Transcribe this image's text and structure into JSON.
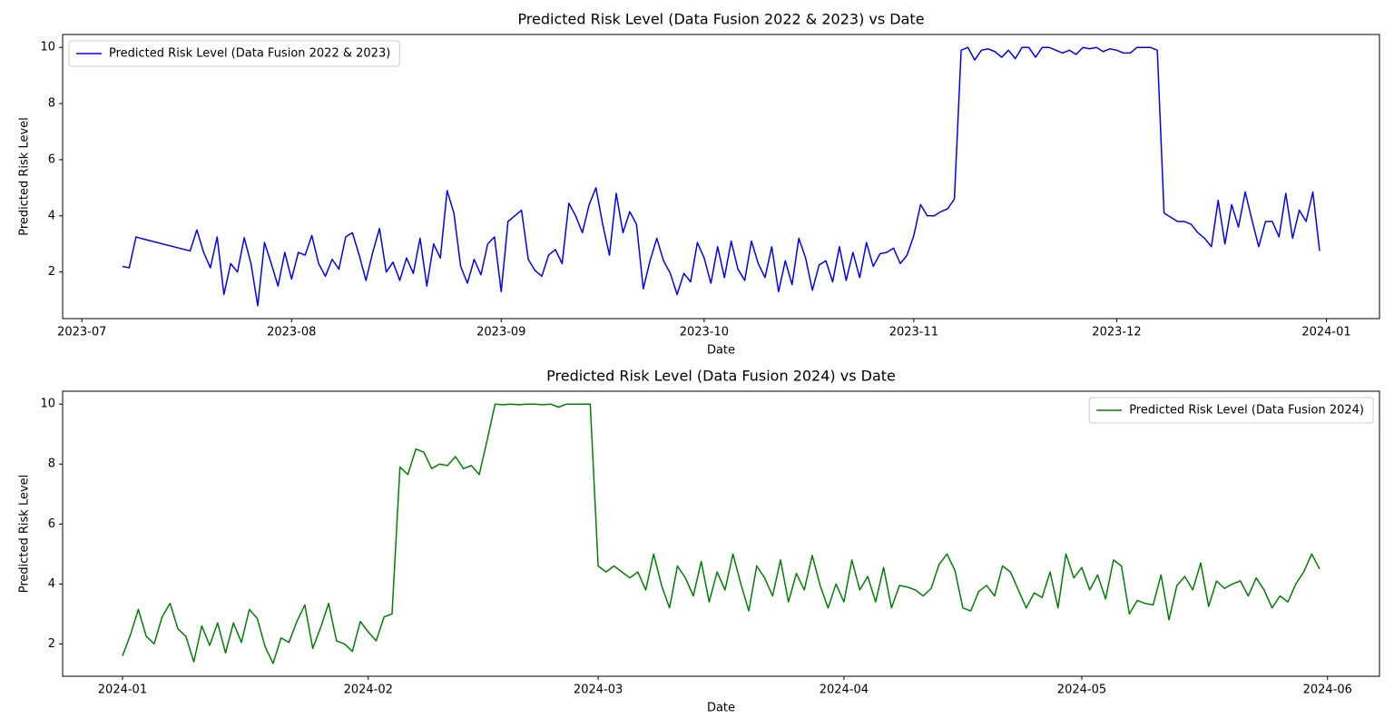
{
  "chart_data": [
    {
      "type": "line",
      "title": "Predicted Risk Level (Data Fusion 2022 & 2023) vs Date",
      "x_label": "Date",
      "y_label": "Predicted Risk Level",
      "legend": "upper left",
      "xlim": [
        19536.15,
        19730.85
      ],
      "ylim": [
        0.34,
        10.46
      ],
      "xticks": [
        {
          "value": 19539,
          "label": "2023-07"
        },
        {
          "value": 19570,
          "label": "2023-08"
        },
        {
          "value": 19601,
          "label": "2023-09"
        },
        {
          "value": 19631,
          "label": "2023-10"
        },
        {
          "value": 19662,
          "label": "2023-11"
        },
        {
          "value": 19692,
          "label": "2023-12"
        },
        {
          "value": 19723,
          "label": "2024-01"
        }
      ],
      "yticks": [
        2,
        4,
        6,
        8,
        10
      ],
      "x": [
        19545,
        19546,
        19547,
        19548,
        19555,
        19556,
        19557,
        19558,
        19559,
        19560,
        19561,
        19562,
        19563,
        19564,
        19565,
        19566,
        19567,
        19568,
        19569,
        19570,
        19571,
        19572,
        19573,
        19574,
        19575,
        19576,
        19577,
        19578,
        19579,
        19580,
        19581,
        19582,
        19583,
        19584,
        19585,
        19586,
        19587,
        19588,
        19589,
        19590,
        19591,
        19592,
        19593,
        19594,
        19595,
        19596,
        19597,
        19598,
        19599,
        19600,
        19601,
        19602,
        19603,
        19604,
        19605,
        19606,
        19607,
        19608,
        19609,
        19610,
        19611,
        19612,
        19613,
        19614,
        19615,
        19616,
        19617,
        19618,
        19619,
        19620,
        19621,
        19622,
        19623,
        19624,
        19625,
        19626,
        19627,
        19628,
        19629,
        19630,
        19631,
        19632,
        19633,
        19634,
        19635,
        19636,
        19637,
        19638,
        19639,
        19640,
        19641,
        19642,
        19643,
        19644,
        19645,
        19646,
        19647,
        19648,
        19649,
        19650,
        19651,
        19652,
        19653,
        19654,
        19655,
        19656,
        19657,
        19658,
        19659,
        19660,
        19661,
        19662,
        19663,
        19664,
        19665,
        19666,
        19667,
        19668,
        19669,
        19670,
        19671,
        19672,
        19673,
        19674,
        19675,
        19676,
        19677,
        19678,
        19679,
        19680,
        19681,
        19682,
        19683,
        19684,
        19685,
        19686,
        19687,
        19688,
        19689,
        19690,
        19691,
        19692,
        19693,
        19694,
        19695,
        19696,
        19697,
        19698,
        19699,
        19700,
        19701,
        19702,
        19703,
        19704,
        19705,
        19706,
        19707,
        19708,
        19709,
        19710,
        19711,
        19712,
        19713,
        19714,
        19715,
        19716,
        19717,
        19718,
        19719,
        19720,
        19721,
        19722
      ],
      "series": [
        {
          "name": "Predicted Risk Level (Data Fusion 2022 & 2023)",
          "color": "#0000ff",
          "values": [
            2.2,
            2.15,
            3.25,
            3.18,
            2.75,
            3.5,
            2.7,
            2.15,
            3.25,
            1.2,
            2.3,
            2.0,
            3.22,
            2.3,
            0.8,
            3.05,
            2.3,
            1.5,
            2.7,
            1.75,
            2.7,
            2.6,
            3.3,
            2.3,
            1.85,
            2.45,
            2.1,
            3.25,
            3.4,
            2.6,
            1.7,
            2.7,
            3.55,
            2.0,
            2.35,
            1.7,
            2.5,
            1.95,
            3.2,
            1.5,
            3.0,
            2.5,
            4.9,
            4.1,
            2.2,
            1.6,
            2.45,
            1.9,
            3.0,
            3.25,
            1.3,
            3.8,
            4.0,
            4.2,
            2.45,
            2.05,
            1.85,
            2.6,
            2.8,
            2.3,
            4.45,
            4.0,
            3.4,
            4.4,
            5.0,
            3.7,
            2.6,
            4.8,
            3.4,
            4.15,
            3.7,
            1.4,
            2.4,
            3.2,
            2.4,
            1.95,
            1.2,
            1.95,
            1.65,
            3.05,
            2.5,
            1.6,
            2.9,
            1.8,
            3.1,
            2.1,
            1.7,
            3.1,
            2.3,
            1.8,
            2.9,
            1.3,
            2.4,
            1.55,
            3.2,
            2.5,
            1.35,
            2.25,
            2.4,
            1.65,
            2.9,
            1.7,
            2.7,
            1.8,
            3.05,
            2.2,
            2.65,
            2.7,
            2.85,
            2.3,
            2.6,
            3.3,
            4.4,
            4.0,
            4.0,
            4.15,
            4.25,
            4.6,
            9.9,
            10.0,
            9.55,
            9.9,
            9.95,
            9.85,
            9.65,
            9.9,
            9.6,
            10.0,
            10.0,
            9.65,
            10.0,
            10.0,
            9.9,
            9.8,
            9.9,
            9.75,
            10.0,
            9.95,
            10.0,
            9.85,
            9.95,
            9.9,
            9.8,
            9.8,
            10.0,
            10.0,
            10.0,
            9.9,
            4.1,
            3.95,
            3.8,
            3.8,
            3.7,
            3.4,
            3.2,
            2.9,
            4.55,
            3.0,
            4.4,
            3.6,
            4.85,
            3.85,
            2.9,
            3.8,
            3.8,
            3.25,
            4.8,
            3.2,
            4.2,
            3.8,
            4.85,
            2.75
          ]
        }
      ]
    },
    {
      "type": "line",
      "title": "Predicted Risk Level (Data Fusion 2024) vs Date",
      "x_label": "Date",
      "y_label": "Predicted Risk Level",
      "legend": "upper right",
      "xlim": [
        19715.45,
        19881.55
      ],
      "ylim": [
        0.92,
        10.43
      ],
      "xticks": [
        {
          "value": 19723,
          "label": "2024-01"
        },
        {
          "value": 19754,
          "label": "2024-02"
        },
        {
          "value": 19783,
          "label": "2024-03"
        },
        {
          "value": 19814,
          "label": "2024-04"
        },
        {
          "value": 19844,
          "label": "2024-05"
        },
        {
          "value": 19875,
          "label": "2024-06"
        }
      ],
      "yticks": [
        2,
        4,
        6,
        8,
        10
      ],
      "x": [
        19723,
        19724,
        19725,
        19726,
        19727,
        19728,
        19729,
        19730,
        19731,
        19732,
        19733,
        19734,
        19735,
        19736,
        19737,
        19738,
        19739,
        19740,
        19741,
        19742,
        19743,
        19744,
        19745,
        19746,
        19747,
        19748,
        19749,
        19750,
        19751,
        19752,
        19753,
        19754,
        19755,
        19756,
        19757,
        19758,
        19759,
        19760,
        19761,
        19762,
        19763,
        19764,
        19765,
        19766,
        19767,
        19768,
        19769,
        19770,
        19771,
        19772,
        19773,
        19774,
        19775,
        19776,
        19777,
        19778,
        19779,
        19780,
        19781,
        19782,
        19783,
        19784,
        19785,
        19786,
        19787,
        19788,
        19789,
        19790,
        19791,
        19792,
        19793,
        19794,
        19795,
        19796,
        19797,
        19798,
        19799,
        19800,
        19801,
        19802,
        19803,
        19804,
        19805,
        19806,
        19807,
        19808,
        19809,
        19810,
        19811,
        19812,
        19813,
        19814,
        19815,
        19816,
        19817,
        19818,
        19819,
        19820,
        19821,
        19822,
        19823,
        19824,
        19825,
        19826,
        19827,
        19828,
        19829,
        19830,
        19831,
        19832,
        19833,
        19834,
        19835,
        19836,
        19837,
        19838,
        19839,
        19840,
        19841,
        19842,
        19843,
        19844,
        19845,
        19846,
        19847,
        19848,
        19849,
        19850,
        19851,
        19852,
        19853,
        19854,
        19855,
        19856,
        19857,
        19858,
        19859,
        19860,
        19861,
        19862,
        19863,
        19864,
        19865,
        19866,
        19867,
        19868,
        19869,
        19870,
        19871,
        19872,
        19873,
        19874
      ],
      "series": [
        {
          "name": "Predicted Risk Level (Data Fusion 2024)",
          "color": "#008000",
          "values": [
            1.6,
            2.3,
            3.15,
            2.25,
            2.0,
            2.9,
            3.35,
            2.5,
            2.25,
            1.4,
            2.6,
            1.95,
            2.7,
            1.7,
            2.7,
            2.05,
            3.15,
            2.85,
            1.9,
            1.35,
            2.2,
            2.05,
            2.75,
            3.3,
            1.85,
            2.55,
            3.35,
            2.1,
            2.0,
            1.75,
            2.75,
            2.4,
            2.1,
            2.9,
            3.0,
            7.9,
            7.65,
            8.5,
            8.4,
            7.85,
            8.0,
            7.95,
            8.25,
            7.85,
            7.95,
            7.65,
            8.8,
            10.0,
            9.98,
            10.0,
            9.98,
            10.0,
            10.0,
            9.98,
            10.0,
            9.9,
            10.0,
            10.0,
            10.0,
            10.0,
            4.6,
            4.4,
            4.6,
            4.4,
            4.2,
            4.4,
            3.8,
            5.0,
            3.95,
            3.2,
            4.6,
            4.2,
            3.6,
            4.75,
            3.4,
            4.4,
            3.8,
            5.0,
            4.0,
            3.1,
            4.6,
            4.2,
            3.6,
            4.8,
            3.4,
            4.35,
            3.8,
            4.95,
            3.95,
            3.2,
            4.0,
            3.4,
            4.8,
            3.8,
            4.25,
            3.4,
            4.55,
            3.2,
            3.95,
            3.9,
            3.8,
            3.6,
            3.85,
            4.65,
            5.0,
            4.45,
            3.2,
            3.1,
            3.75,
            3.95,
            3.6,
            4.6,
            4.4,
            3.8,
            3.2,
            3.7,
            3.55,
            4.4,
            3.2,
            5.0,
            4.2,
            4.55,
            3.8,
            4.3,
            3.5,
            4.8,
            4.6,
            3.0,
            3.45,
            3.35,
            3.3,
            4.3,
            2.8,
            3.95,
            4.25,
            3.8,
            4.7,
            3.25,
            4.1,
            3.85,
            4.0,
            4.1,
            3.6,
            4.2,
            3.8,
            3.2,
            3.6,
            3.4,
            4.0,
            4.4,
            5.0,
            4.5
          ]
        }
      ]
    }
  ]
}
